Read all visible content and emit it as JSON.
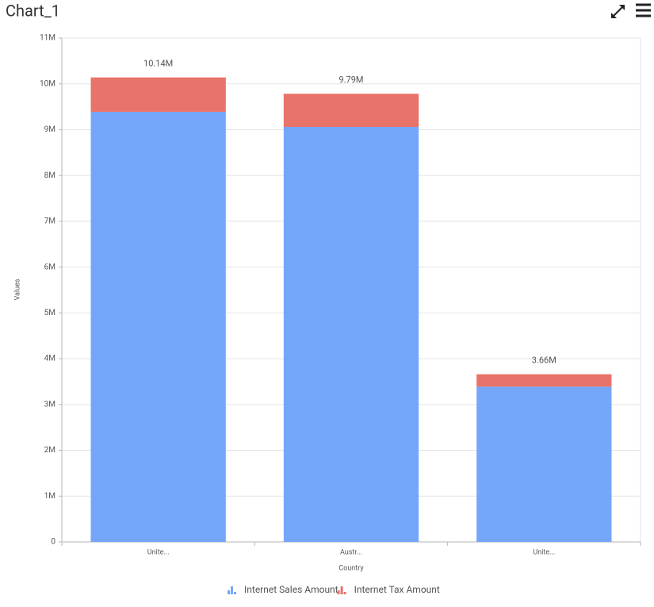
{
  "chart_data": {
    "type": "stacked_bar",
    "title": "Chart_1",
    "x_label": "Country",
    "y_label": "Values",
    "categories": [
      "Unite...",
      "Austr...",
      "Unite..."
    ],
    "series": [
      {
        "name": "Internet Sales Amount",
        "color": "#76a6fa",
        "values": [
          9390000,
          9060000,
          3390000
        ]
      },
      {
        "name": "Internet Tax Amount",
        "color": "#e8736a",
        "values": [
          751000,
          725000,
          271000
        ]
      }
    ],
    "total_labels": [
      "10.14M",
      "9.79M",
      "3.66M"
    ],
    "ylim": [
      0,
      11000000
    ],
    "yticks": [
      0,
      {
        "value": 1000000,
        "label": "1M"
      },
      {
        "value": 2000000,
        "label": "2M"
      },
      {
        "value": 3000000,
        "label": "3M"
      },
      {
        "value": 4000000,
        "label": "4M"
      },
      {
        "value": 5000000,
        "label": "5M"
      },
      {
        "value": 6000000,
        "label": "6M"
      },
      {
        "value": 7000000,
        "label": "7M"
      },
      {
        "value": 8000000,
        "label": "8M"
      },
      {
        "value": 9000000,
        "label": "9M"
      },
      {
        "value": 10000000,
        "label": "10M"
      },
      {
        "value": 11000000,
        "label": "11M"
      }
    ],
    "grid": true,
    "legend": "bottom"
  }
}
